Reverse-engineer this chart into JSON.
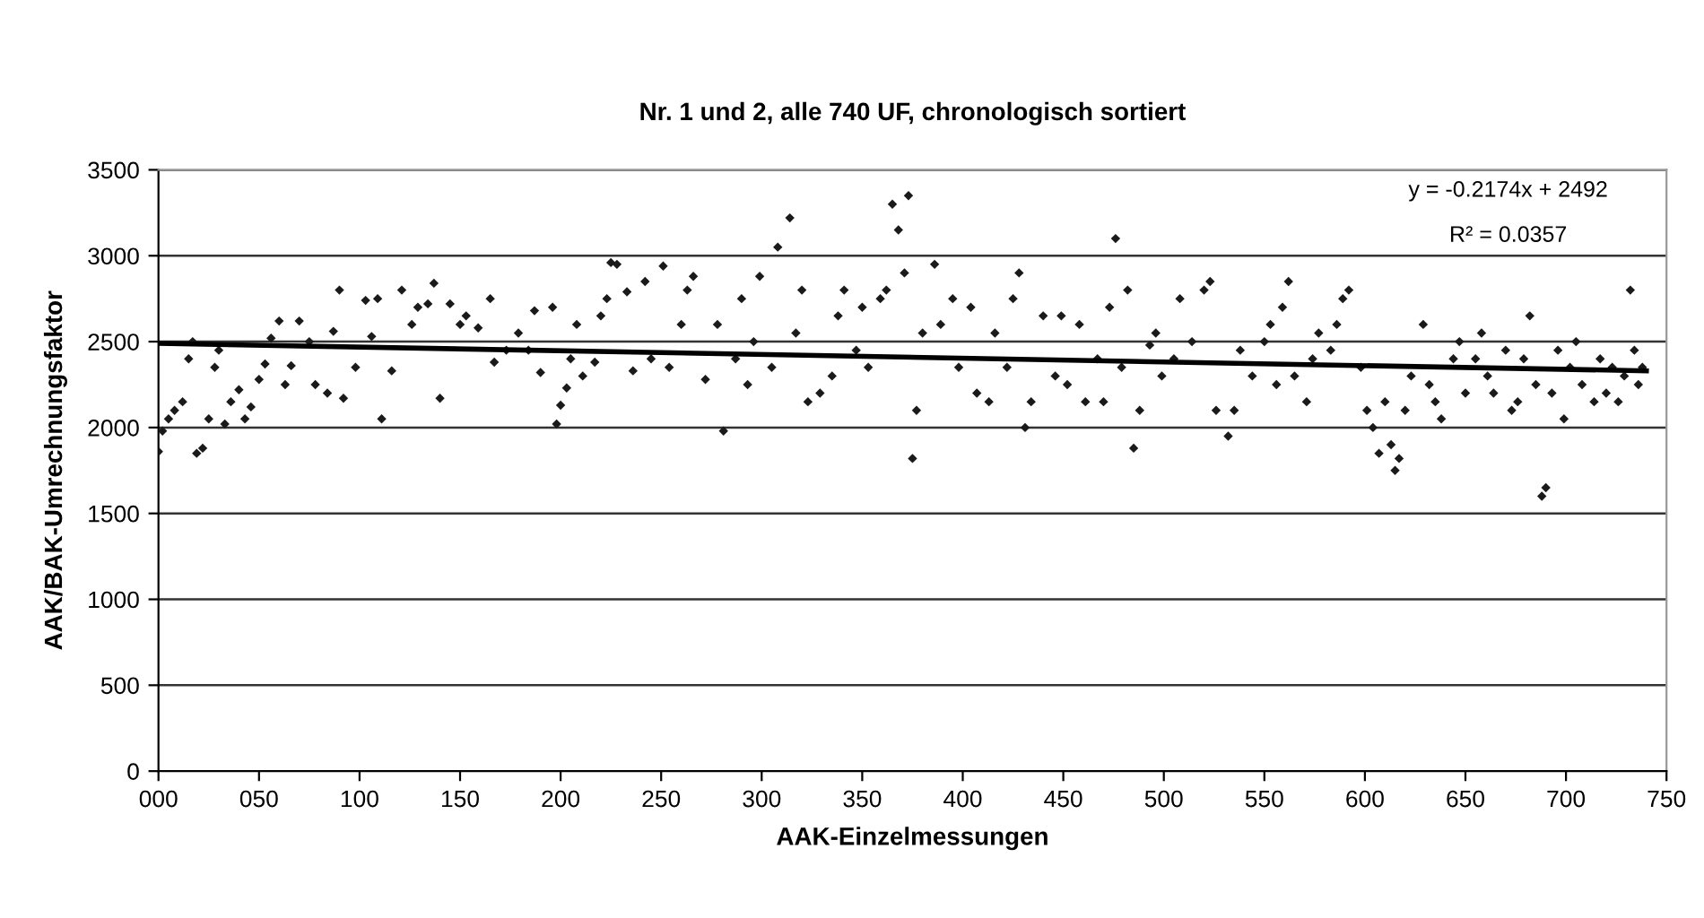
{
  "chart_data": {
    "type": "scatter",
    "title": "Nr. 1 und 2, alle 740 UF, chronologisch sortiert",
    "xlabel": "AAK-Einzelmessungen",
    "ylabel": "AAK/BAK-Umrechnungsfaktor",
    "annotations": [
      "y = -0.2174x + 2492",
      "R² = 0.0357"
    ],
    "xlim": [
      0,
      750
    ],
    "ylim": [
      0,
      3500
    ],
    "xticks": [
      {
        "value": 0,
        "label": "000"
      },
      {
        "value": 50,
        "label": "050"
      },
      100,
      150,
      200,
      250,
      300,
      350,
      400,
      450,
      500,
      550,
      600,
      650,
      700,
      750
    ],
    "yticks": [
      0,
      500,
      1000,
      1500,
      2000,
      2500,
      3000,
      3500
    ],
    "grid": "y",
    "legend": false,
    "series": [
      {
        "marker": "diamond",
        "color": "#1a1a1a",
        "x": [
          0,
          2,
          5,
          8,
          12,
          15,
          17,
          19,
          22,
          25,
          28,
          30,
          33,
          36,
          40,
          43,
          46,
          50,
          53,
          56,
          60,
          63,
          66,
          70,
          75,
          78,
          84,
          87,
          90,
          92,
          98,
          103,
          106,
          109,
          111,
          116,
          121,
          126,
          129,
          134,
          137,
          140,
          145,
          150,
          153,
          159,
          165,
          167,
          173,
          179,
          184,
          187,
          190,
          196,
          198,
          200,
          203,
          205,
          208,
          211,
          217,
          220,
          223,
          225,
          228,
          233,
          236,
          242,
          245,
          251,
          254,
          260,
          263,
          266,
          272,
          278,
          281,
          287,
          290,
          293,
          296,
          299,
          305,
          308,
          314,
          317,
          320,
          323,
          329,
          335,
          338,
          341,
          347,
          350,
          353,
          359,
          362,
          365,
          368,
          371,
          373,
          375,
          377,
          380,
          386,
          389,
          395,
          398,
          404,
          407,
          413,
          416,
          422,
          425,
          428,
          431,
          434,
          440,
          446,
          449,
          452,
          458,
          461,
          467,
          470,
          473,
          476,
          479,
          482,
          485,
          488,
          493,
          496,
          499,
          505,
          508,
          514,
          520,
          523,
          526,
          532,
          535,
          538,
          544,
          550,
          553,
          556,
          559,
          562,
          565,
          571,
          574,
          577,
          583,
          586,
          589,
          592,
          598,
          601,
          604,
          607,
          610,
          613,
          615,
          617,
          620,
          623,
          629,
          632,
          635,
          638,
          644,
          647,
          650,
          655,
          658,
          661,
          664,
          670,
          673,
          676,
          679,
          682,
          685,
          688,
          690,
          693,
          696,
          699,
          702,
          705,
          708,
          714,
          717,
          720,
          723,
          726,
          729,
          732,
          734,
          736,
          738
        ],
        "values": [
          1860,
          1980,
          2050,
          2100,
          2150,
          2400,
          2500,
          1850,
          1880,
          2050,
          2350,
          2450,
          2020,
          2150,
          2220,
          2050,
          2120,
          2280,
          2370,
          2520,
          2620,
          2250,
          2360,
          2620,
          2500,
          2250,
          2200,
          2560,
          2800,
          2170,
          2350,
          2740,
          2530,
          2750,
          2050,
          2330,
          2800,
          2600,
          2700,
          2720,
          2840,
          2170,
          2720,
          2600,
          2650,
          2580,
          2750,
          2380,
          2450,
          2550,
          2450,
          2680,
          2320,
          2700,
          2020,
          2130,
          2230,
          2400,
          2600,
          2300,
          2380,
          2650,
          2750,
          2960,
          2950,
          2790,
          2330,
          2850,
          2400,
          2940,
          2350,
          2600,
          2800,
          2880,
          2280,
          2600,
          1980,
          2400,
          2750,
          2250,
          2500,
          2880,
          2350,
          3050,
          3220,
          2550,
          2800,
          2150,
          2200,
          2300,
          2650,
          2800,
          2450,
          2700,
          2350,
          2750,
          2800,
          3300,
          3150,
          2900,
          3350,
          1820,
          2100,
          2550,
          2950,
          2600,
          2750,
          2350,
          2700,
          2200,
          2150,
          2550,
          2350,
          2750,
          2900,
          2000,
          2150,
          2650,
          2300,
          2650,
          2250,
          2600,
          2150,
          2400,
          2150,
          2700,
          3100,
          2350,
          2800,
          1880,
          2100,
          2480,
          2550,
          2300,
          2400,
          2750,
          2500,
          2800,
          2850,
          2100,
          1950,
          2100,
          2450,
          2300,
          2500,
          2600,
          2250,
          2700,
          2850,
          2300,
          2150,
          2400,
          2550,
          2450,
          2600,
          2750,
          2800,
          2350,
          2100,
          2000,
          1850,
          2150,
          1900,
          1750,
          1820,
          2100,
          2300,
          2600,
          2250,
          2150,
          2050,
          2400,
          2500,
          2200,
          2400,
          2550,
          2300,
          2200,
          2450,
          2100,
          2150,
          2400,
          2650,
          2250,
          1600,
          1650,
          2200,
          2450,
          2050,
          2350,
          2500,
          2250,
          2150,
          2400,
          2200,
          2350,
          2150,
          2300,
          2800,
          2450,
          2250,
          2350
        ]
      },
      {
        "type": "line",
        "color": "#000000",
        "x": [
          0,
          740
        ],
        "values": [
          2490,
          2330
        ]
      }
    ]
  }
}
